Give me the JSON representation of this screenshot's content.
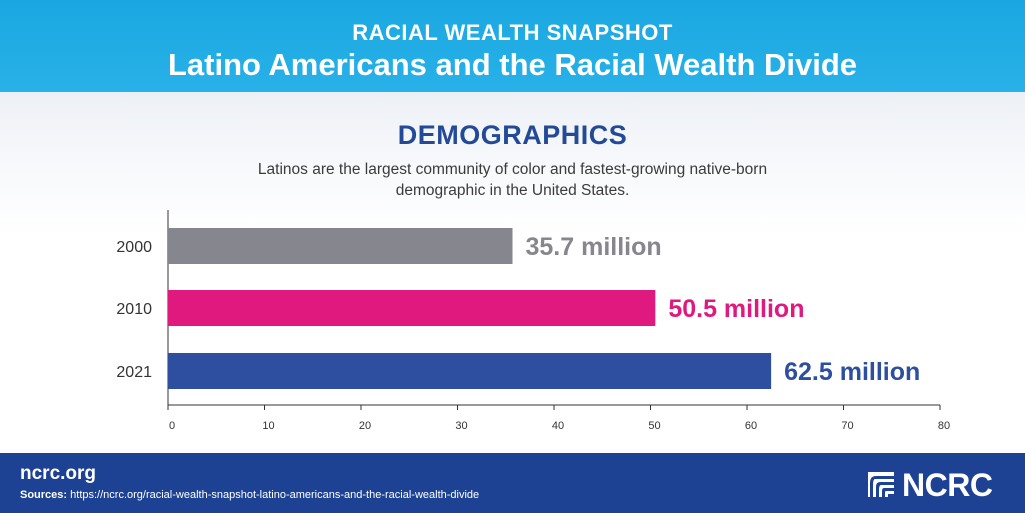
{
  "header": {
    "kicker": "RACIAL WEALTH SNAPSHOT",
    "title": "Latino Americans and the Racial Wealth Divide"
  },
  "section": {
    "title": "DEMOGRAPHICS",
    "description": "Latinos are the largest community of color and fastest-growing native-born demographic in the United States."
  },
  "chart_data": {
    "type": "bar",
    "orientation": "horizontal",
    "categories": [
      "2000",
      "2010",
      "2021"
    ],
    "values": [
      35.7,
      50.5,
      62.5
    ],
    "value_labels": [
      "35.7 million",
      "50.5 million",
      "62.5 million"
    ],
    "colors": [
      "#85868e",
      "#e0197f",
      "#2e4f9f"
    ],
    "xlim": [
      0,
      80
    ],
    "xticks": [
      0,
      10,
      20,
      30,
      40,
      50,
      60,
      70,
      80
    ],
    "grid": false
  },
  "footer": {
    "site": "ncrc.org",
    "sources_label": "Sources:",
    "sources_url": "https://ncrc.org/racial-wealth-snapshot-latino-americans-and-the-racial-wealth-divide",
    "logo_text": "NCRC"
  }
}
